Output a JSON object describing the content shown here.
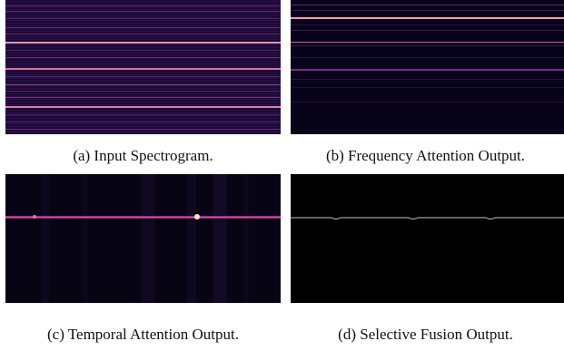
{
  "figure": {
    "panels": [
      {
        "id": "a",
        "caption": "(a) Input Spectrogram.",
        "colormap": "magma",
        "icon": "spectrogram-image"
      },
      {
        "id": "b",
        "caption": "(b) Frequency Attention Output.",
        "colormap": "magma",
        "icon": "attention-map-image"
      },
      {
        "id": "c",
        "caption": "(c) Temporal Attention Output.",
        "colormap": "magma",
        "icon": "attention-map-image"
      },
      {
        "id": "d",
        "caption": "(d) Selective Fusion Output.",
        "colormap": "grayscale",
        "icon": "fusion-map-image"
      }
    ]
  }
}
